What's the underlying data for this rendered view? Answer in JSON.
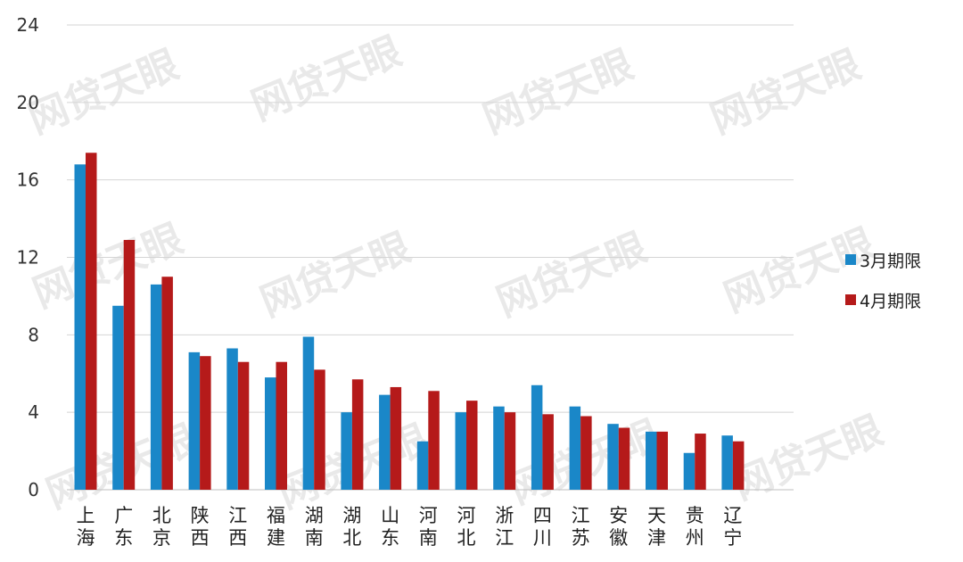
{
  "chart_data": {
    "type": "bar",
    "title": "",
    "xlabel": "",
    "ylabel": "",
    "ylim": [
      0,
      24
    ],
    "yticks": [
      "0",
      "4",
      "8",
      "12",
      "16",
      "20",
      "24"
    ],
    "grid": true,
    "legend_position": "right",
    "categories": [
      "上海",
      "广东",
      "北京",
      "陕西",
      "江西",
      "福建",
      "湖南",
      "湖北",
      "山东",
      "河南",
      "河北",
      "浙江",
      "四川",
      "江苏",
      "安徽",
      "天津",
      "贵州",
      "辽宁"
    ],
    "series": [
      {
        "name": "3月期限",
        "color": "#1a87c8",
        "values": [
          16.8,
          9.5,
          10.6,
          7.1,
          7.3,
          5.8,
          7.9,
          4.0,
          4.9,
          2.5,
          4.0,
          4.3,
          5.4,
          4.3,
          3.4,
          3.0,
          1.9,
          2.8
        ]
      },
      {
        "name": "4月期限",
        "color": "#b51a1a",
        "values": [
          17.4,
          12.9,
          11.0,
          6.9,
          6.6,
          6.6,
          6.2,
          5.7,
          5.3,
          5.1,
          4.6,
          4.0,
          3.9,
          3.8,
          3.2,
          3.0,
          2.9,
          2.5
        ]
      }
    ]
  },
  "watermark": "网贷天眼"
}
